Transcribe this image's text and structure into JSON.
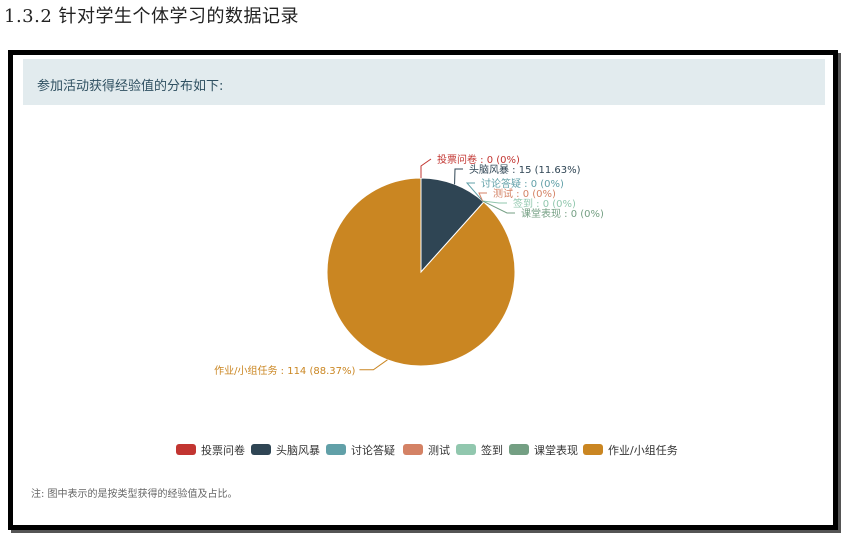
{
  "heading": "1.3.2  针对学生个体学习的数据记录",
  "panel_title": "参加活动获得经验值的分布如下:",
  "note": "注: 图中表示的是按类型获得的经验值及占比。",
  "chart_data": {
    "type": "pie",
    "title": "",
    "categories": [
      "投票问卷",
      "头脑风暴",
      "讨论答疑",
      "测试",
      "签到",
      "课堂表现",
      "作业/小组任务"
    ],
    "values": [
      0,
      15,
      0,
      0,
      0,
      0,
      114
    ],
    "percents": [
      "0%",
      "11.63%",
      "0%",
      "0%",
      "0%",
      "0%",
      "88.37%"
    ],
    "labels": [
      "投票问卷 : 0 (0%)",
      "头脑风暴 : 15 (11.63%)",
      "讨论答疑 : 0 (0%)",
      "测试 : 0 (0%)",
      "签到 : 0 (0%)",
      "课堂表现 : 0 (0%)",
      "作业/小组任务 : 114 (88.37%)"
    ],
    "colors": [
      "#c23531",
      "#2f4554",
      "#61a0a8",
      "#d48265",
      "#91c7ae",
      "#749f83",
      "#ca8622"
    ],
    "legend_position": "bottom"
  }
}
